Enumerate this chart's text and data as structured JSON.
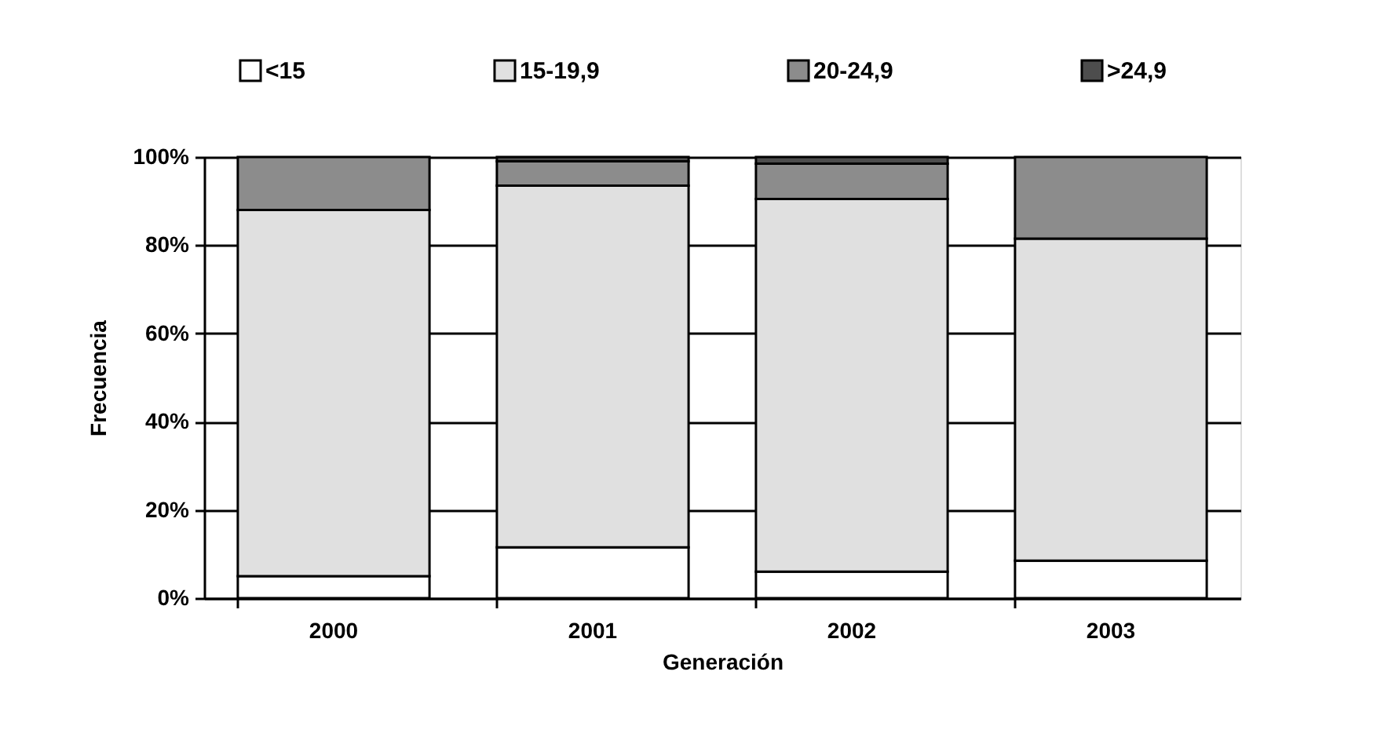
{
  "chart_data": {
    "type": "bar",
    "stacked": true,
    "xlabel": "Generación",
    "ylabel": "Frecuencia",
    "categories": [
      "2000",
      "2001",
      "2002",
      "2003"
    ],
    "series": [
      {
        "name": "<15",
        "color": "#ffffff",
        "values": [
          5,
          11.5,
          6,
          8.5
        ]
      },
      {
        "name": "15-19,9",
        "color": "#e0e0e0",
        "values": [
          83,
          82,
          84.5,
          73
        ]
      },
      {
        "name": "20-24,9",
        "color": "#8c8c8c",
        "values": [
          12,
          5.5,
          8,
          18.5
        ]
      },
      {
        "name": ">24,9",
        "color": "#4d4d4d",
        "values": [
          0,
          1,
          1.5,
          0
        ]
      }
    ],
    "ylim": [
      0,
      100
    ],
    "yticks": [
      {
        "value": 0,
        "label": "0%"
      },
      {
        "value": 20,
        "label": "20%"
      },
      {
        "value": 40,
        "label": "40%"
      },
      {
        "value": 60,
        "label": "60%"
      },
      {
        "value": 80,
        "label": "80%"
      },
      {
        "value": 100,
        "label": "100%"
      }
    ],
    "grid": "y",
    "legend": "top"
  }
}
